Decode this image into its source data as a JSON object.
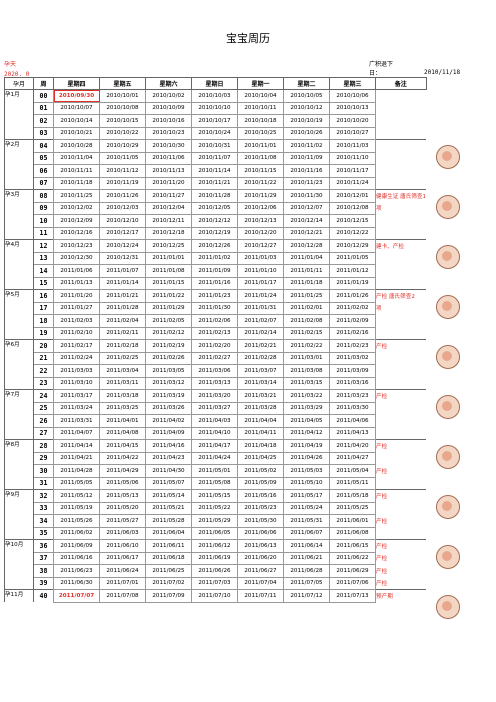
{
  "title": "宝宝周历",
  "header": {
    "left_line1": "孕天",
    "left_line2": "2020. 0",
    "mid_line1": "广积退下",
    "mid_line2": "日：",
    "right": "2010/11/18"
  },
  "columns": [
    "孕月",
    "周",
    "星期四",
    "星期五",
    "星期六",
    "星期日",
    "星期一",
    "星期二",
    "星期三",
    "备注"
  ],
  "blocks": [
    {
      "month": "孕1月",
      "rows": [
        {
          "w": "00",
          "d": [
            "2010/09/30",
            "2010/10/01",
            "2010/10/02",
            "2010/10/03",
            "2010/10/04",
            "2010/10/05",
            "2010/10/06"
          ],
          "n": "",
          "hl": true,
          "box": true
        },
        {
          "w": "01",
          "d": [
            "2010/10/07",
            "2010/10/08",
            "2010/10/09",
            "2010/10/10",
            "2010/10/11",
            "2010/10/12",
            "2010/10/13"
          ],
          "n": ""
        },
        {
          "w": "02",
          "d": [
            "2010/10/14",
            "2010/10/15",
            "2010/10/16",
            "2010/10/17",
            "2010/10/18",
            "2010/10/19",
            "2010/10/20"
          ],
          "n": ""
        },
        {
          "w": "03",
          "d": [
            "2010/10/21",
            "2010/10/22",
            "2010/10/23",
            "2010/10/24",
            "2010/10/25",
            "2010/10/26",
            "2010/10/27"
          ],
          "n": ""
        }
      ]
    },
    {
      "month": "孕2月",
      "rows": [
        {
          "w": "04",
          "d": [
            "2010/10/28",
            "2010/10/29",
            "2010/10/30",
            "2010/10/31",
            "2010/11/01",
            "2010/11/02",
            "2010/11/03"
          ],
          "n": ""
        },
        {
          "w": "05",
          "d": [
            "2010/11/04",
            "2010/11/05",
            "2010/11/06",
            "2010/11/07",
            "2010/11/08",
            "2010/11/09",
            "2010/11/10"
          ],
          "n": ""
        },
        {
          "w": "06",
          "d": [
            "2010/11/11",
            "2010/11/12",
            "2010/11/13",
            "2010/11/14",
            "2010/11/15",
            "2010/11/16",
            "2010/11/17"
          ],
          "n": ""
        },
        {
          "w": "07",
          "d": [
            "2010/11/18",
            "2010/11/19",
            "2010/11/20",
            "2010/11/21",
            "2010/11/22",
            "2010/11/23",
            "2010/11/24"
          ],
          "n": ""
        }
      ]
    },
    {
      "month": "孕3月",
      "rows": [
        {
          "w": "08",
          "d": [
            "2010/11/25",
            "2010/11/26",
            "2010/11/27",
            "2010/11/28",
            "2010/11/29",
            "2010/11/30",
            "2010/12/01"
          ],
          "n": "健康生证 唐氏筛查1"
        },
        {
          "w": "09",
          "d": [
            "2010/12/02",
            "2010/12/03",
            "2010/12/04",
            "2010/12/05",
            "2010/12/06",
            "2010/12/07",
            "2010/12/08"
          ],
          "n": "项"
        },
        {
          "w": "10",
          "d": [
            "2010/12/09",
            "2010/12/10",
            "2010/12/11",
            "2010/12/12",
            "2010/12/13",
            "2010/12/14",
            "2010/12/15"
          ],
          "n": ""
        },
        {
          "w": "11",
          "d": [
            "2010/12/16",
            "2010/12/17",
            "2010/12/18",
            "2010/12/19",
            "2010/12/20",
            "2010/12/21",
            "2010/12/22"
          ],
          "n": ""
        }
      ]
    },
    {
      "month": "孕4月",
      "rows": [
        {
          "w": "12",
          "d": [
            "2010/12/23",
            "2010/12/24",
            "2010/12/25",
            "2010/12/26",
            "2010/12/27",
            "2010/12/28",
            "2010/12/29"
          ],
          "n": "建卡、产检"
        },
        {
          "w": "13",
          "d": [
            "2010/12/30",
            "2010/12/31",
            "2011/01/01",
            "2011/01/02",
            "2011/01/03",
            "2011/01/04",
            "2011/01/05"
          ],
          "n": ""
        },
        {
          "w": "14",
          "d": [
            "2011/01/06",
            "2011/01/07",
            "2011/01/08",
            "2011/01/09",
            "2011/01/10",
            "2011/01/11",
            "2011/01/12"
          ],
          "n": ""
        },
        {
          "w": "15",
          "d": [
            "2011/01/13",
            "2011/01/14",
            "2011/01/15",
            "2011/01/16",
            "2011/01/17",
            "2011/01/18",
            "2011/01/19"
          ],
          "n": ""
        }
      ]
    },
    {
      "month": "孕5月",
      "rows": [
        {
          "w": "16",
          "d": [
            "2011/01/20",
            "2011/01/21",
            "2011/01/22",
            "2011/01/23",
            "2011/01/24",
            "2011/01/25",
            "2011/01/26"
          ],
          "n": "产检 唐氏筛查2"
        },
        {
          "w": "17",
          "d": [
            "2011/01/27",
            "2011/01/28",
            "2011/01/29",
            "2011/01/30",
            "2011/01/31",
            "2011/02/01",
            "2011/02/02"
          ],
          "n": "项"
        },
        {
          "w": "18",
          "d": [
            "2011/02/03",
            "2011/02/04",
            "2011/02/05",
            "2011/02/06",
            "2011/02/07",
            "2011/02/08",
            "2011/02/09"
          ],
          "n": ""
        },
        {
          "w": "19",
          "d": [
            "2011/02/10",
            "2011/02/11",
            "2011/02/12",
            "2011/02/13",
            "2011/02/14",
            "2011/02/15",
            "2011/02/16"
          ],
          "n": ""
        }
      ]
    },
    {
      "month": "孕6月",
      "rows": [
        {
          "w": "20",
          "d": [
            "2011/02/17",
            "2011/02/18",
            "2011/02/19",
            "2011/02/20",
            "2011/02/21",
            "2011/02/22",
            "2011/02/23"
          ],
          "n": "产检"
        },
        {
          "w": "21",
          "d": [
            "2011/02/24",
            "2011/02/25",
            "2011/02/26",
            "2011/02/27",
            "2011/02/28",
            "2011/03/01",
            "2011/03/02"
          ],
          "n": ""
        },
        {
          "w": "22",
          "d": [
            "2011/03/03",
            "2011/03/04",
            "2011/03/05",
            "2011/03/06",
            "2011/03/07",
            "2011/03/08",
            "2011/03/09"
          ],
          "n": ""
        },
        {
          "w": "23",
          "d": [
            "2011/03/10",
            "2011/03/11",
            "2011/03/12",
            "2011/03/13",
            "2011/03/14",
            "2011/03/15",
            "2011/03/16"
          ],
          "n": ""
        }
      ]
    },
    {
      "month": "孕7月",
      "rows": [
        {
          "w": "24",
          "d": [
            "2011/03/17",
            "2011/03/18",
            "2011/03/19",
            "2011/03/20",
            "2011/03/21",
            "2011/03/22",
            "2011/03/23"
          ],
          "n": "产检"
        },
        {
          "w": "25",
          "d": [
            "2011/03/24",
            "2011/03/25",
            "2011/03/26",
            "2011/03/27",
            "2011/03/28",
            "2011/03/29",
            "2011/03/30"
          ],
          "n": ""
        },
        {
          "w": "26",
          "d": [
            "2011/03/31",
            "2011/04/01",
            "2011/04/02",
            "2011/04/03",
            "2011/04/04",
            "2011/04/05",
            "2011/04/06"
          ],
          "n": ""
        },
        {
          "w": "27",
          "d": [
            "2011/04/07",
            "2011/04/08",
            "2011/04/09",
            "2011/04/10",
            "2011/04/11",
            "2011/04/12",
            "2011/04/13"
          ],
          "n": ""
        }
      ]
    },
    {
      "month": "孕8月",
      "rows": [
        {
          "w": "28",
          "d": [
            "2011/04/14",
            "2011/04/15",
            "2011/04/16",
            "2011/04/17",
            "2011/04/18",
            "2011/04/19",
            "2011/04/20"
          ],
          "n": "产检"
        },
        {
          "w": "29",
          "d": [
            "2011/04/21",
            "2011/04/22",
            "2011/04/23",
            "2011/04/24",
            "2011/04/25",
            "2011/04/26",
            "2011/04/27"
          ],
          "n": ""
        },
        {
          "w": "30",
          "d": [
            "2011/04/28",
            "2011/04/29",
            "2011/04/30",
            "2011/05/01",
            "2011/05/02",
            "2011/05/03",
            "2011/05/04"
          ],
          "n": "产检"
        },
        {
          "w": "31",
          "d": [
            "2011/05/05",
            "2011/05/06",
            "2011/05/07",
            "2011/05/08",
            "2011/05/09",
            "2011/05/10",
            "2011/05/11"
          ],
          "n": ""
        }
      ]
    },
    {
      "month": "孕9月",
      "rows": [
        {
          "w": "32",
          "d": [
            "2011/05/12",
            "2011/05/13",
            "2011/05/14",
            "2011/05/15",
            "2011/05/16",
            "2011/05/17",
            "2011/05/18"
          ],
          "n": "产检"
        },
        {
          "w": "33",
          "d": [
            "2011/05/19",
            "2011/05/20",
            "2011/05/21",
            "2011/05/22",
            "2011/05/23",
            "2011/05/24",
            "2011/05/25"
          ],
          "n": ""
        },
        {
          "w": "34",
          "d": [
            "2011/05/26",
            "2011/05/27",
            "2011/05/28",
            "2011/05/29",
            "2011/05/30",
            "2011/05/31",
            "2011/06/01"
          ],
          "n": "产检"
        },
        {
          "w": "35",
          "d": [
            "2011/06/02",
            "2011/06/03",
            "2011/06/04",
            "2011/06/05",
            "2011/06/06",
            "2011/06/07",
            "2011/06/08"
          ],
          "n": ""
        }
      ]
    },
    {
      "month": "孕10月",
      "rows": [
        {
          "w": "36",
          "d": [
            "2011/06/09",
            "2011/06/10",
            "2011/06/11",
            "2011/06/12",
            "2011/06/13",
            "2011/06/14",
            "2011/06/15"
          ],
          "n": "产检"
        },
        {
          "w": "37",
          "d": [
            "2011/06/16",
            "2011/06/17",
            "2011/06/18",
            "2011/06/19",
            "2011/06/20",
            "2011/06/21",
            "2011/06/22"
          ],
          "n": "产检"
        },
        {
          "w": "38",
          "d": [
            "2011/06/23",
            "2011/06/24",
            "2011/06/25",
            "2011/06/26",
            "2011/06/27",
            "2011/06/28",
            "2011/06/29"
          ],
          "n": "产检"
        },
        {
          "w": "39",
          "d": [
            "2011/06/30",
            "2011/07/01",
            "2011/07/02",
            "2011/07/03",
            "2011/07/04",
            "2011/07/05",
            "2011/07/06"
          ],
          "n": "产检"
        }
      ]
    },
    {
      "month": "孕11月",
      "rows": [
        {
          "w": "40",
          "d": [
            "2011/07/07",
            "2011/07/08",
            "2011/07/09",
            "2011/07/10",
            "2011/07/11",
            "2011/07/12",
            "2011/07/13"
          ],
          "n": "预产期",
          "hl": true
        }
      ]
    }
  ],
  "colors": {
    "accent": "#e0302a",
    "grid": "#999999",
    "figure_skin": "#f3d7c4"
  },
  "icons": [
    "fetus-illustration"
  ]
}
